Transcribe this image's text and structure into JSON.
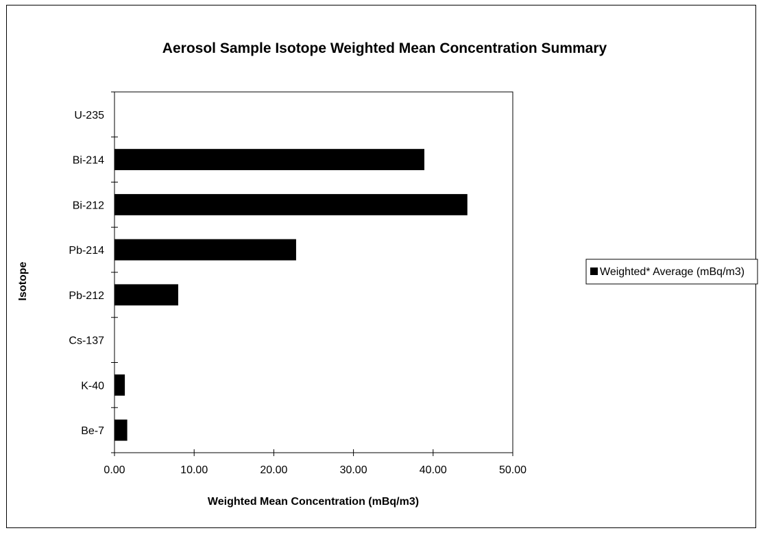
{
  "chart_data": {
    "type": "bar",
    "orientation": "horizontal",
    "title": "Aerosol Sample Isotope Weighted Mean Concentration Summary",
    "xlabel": "Weighted Mean Concentration (mBq/m3)",
    "ylabel": "Isotope",
    "xlim": [
      0,
      50
    ],
    "x_ticks": [
      "0.00",
      "10.00",
      "20.00",
      "30.00",
      "40.00",
      "50.00"
    ],
    "categories": [
      "U-235",
      "Bi-214",
      "Bi-212",
      "Pb-214",
      "Pb-212",
      "Cs-137",
      "K-40",
      "Be-7"
    ],
    "series": [
      {
        "name": "Weighted* Average (mBq/m3)",
        "values": [
          0,
          38.9,
          44.3,
          22.8,
          8.0,
          0,
          1.3,
          1.6
        ]
      }
    ],
    "bar_color": "#000000",
    "grid": false,
    "legend_position": "right"
  }
}
